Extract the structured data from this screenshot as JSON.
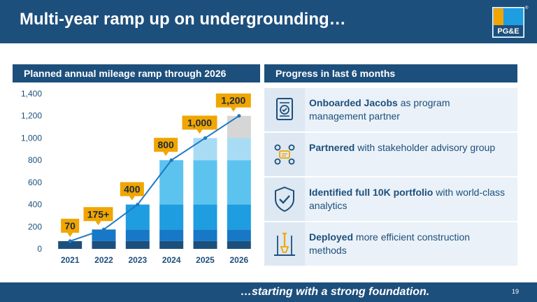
{
  "header": {
    "title": "Multi-year ramp up on undergrounding…",
    "logo_text": "PG&E",
    "logo_mark": "®"
  },
  "left_section": {
    "title": "Planned annual mileage ramp through 2026"
  },
  "right_section": {
    "title": "Progress in last 6 months"
  },
  "chart_data": {
    "type": "bar",
    "categories": [
      "2021",
      "2022",
      "2023",
      "2024",
      "2025",
      "2026"
    ],
    "ylim": [
      0,
      1400
    ],
    "yticks": [
      "0",
      "200",
      "400",
      "600",
      "800",
      "1,000",
      "1,200",
      "1,400"
    ],
    "grid": false,
    "stack_layers": [
      {
        "color": "#1d4f7c",
        "values": [
          70,
          70,
          70,
          70,
          70,
          70
        ]
      },
      {
        "color": "#1678c6",
        "values": [
          0,
          105,
          105,
          105,
          105,
          105
        ]
      },
      {
        "color": "#1e9de0",
        "values": [
          0,
          0,
          225,
          225,
          225,
          225
        ]
      },
      {
        "color": "#5cc3ef",
        "values": [
          0,
          0,
          0,
          400,
          400,
          400
        ]
      },
      {
        "color": "#a8dcf5",
        "values": [
          0,
          0,
          0,
          0,
          200,
          200
        ]
      },
      {
        "color": "#d6d6d6",
        "values": [
          0,
          0,
          0,
          0,
          0,
          200
        ]
      }
    ],
    "line": {
      "values": [
        70,
        175,
        400,
        800,
        1000,
        1200
      ],
      "color": "#1e78c2"
    },
    "data_labels": [
      "70",
      "175+",
      "400",
      "800",
      "1,000",
      "1,200"
    ],
    "label_color": "#f0a500"
  },
  "progress_items": [
    {
      "icon": "checklist-document-icon",
      "bold": "Onboarded Jacobs",
      "text": " as program management partner"
    },
    {
      "icon": "people-collaboration-icon",
      "bold": "Partnered",
      "text": " with stakeholder advisory group"
    },
    {
      "icon": "shield-check-icon",
      "bold": "Identified full 10K portfolio",
      "text": " with world-class analytics"
    },
    {
      "icon": "shovel-construction-icon",
      "bold": "Deployed",
      "text": " more efficient construction methods"
    }
  ],
  "footer": {
    "tagline": "…starting with a strong foundation.",
    "page_number": "19"
  }
}
